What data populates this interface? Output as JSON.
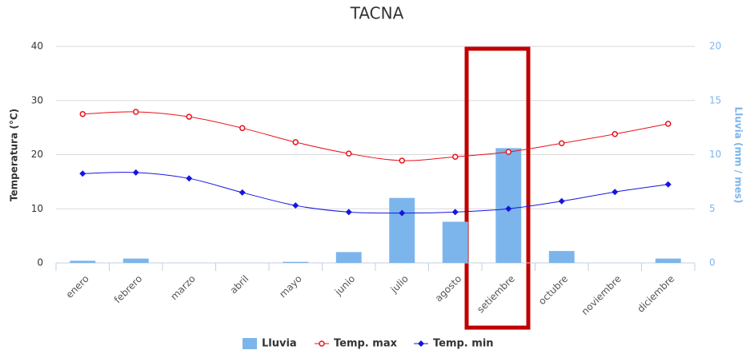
{
  "chart_data": {
    "type": "combo",
    "title": "TACNA",
    "categories": [
      "enero",
      "febrero",
      "marzo",
      "abril",
      "mayo",
      "junio",
      "julio",
      "agosto",
      "setiembre",
      "octubre",
      "noviembre",
      "diciembre"
    ],
    "ylabel": "Temperatura (°C)",
    "y2label": "Lluvia (mm / mes)",
    "ylim": [
      0,
      40
    ],
    "yticks": [
      0,
      10,
      20,
      30,
      40
    ],
    "y2lim": [
      0,
      20
    ],
    "y2ticks": [
      0,
      5,
      10,
      15,
      20
    ],
    "grid": true,
    "legend": "bottom",
    "series": [
      {
        "name": "Lluvia",
        "type": "bar",
        "axis": "y2",
        "color": "#7cb5ec",
        "values": [
          0.2,
          0.4,
          0,
          0,
          0.1,
          1.0,
          6.0,
          3.8,
          10.6,
          1.1,
          0,
          0.4
        ]
      },
      {
        "name": "Temp. max",
        "type": "line",
        "color": "#e8121b",
        "values": [
          27.5,
          27.9,
          27.0,
          24.9,
          22.3,
          20.2,
          18.9,
          19.6,
          20.5,
          22.1,
          23.8,
          25.7
        ]
      },
      {
        "name": "Temp. min",
        "type": "line",
        "color": "#1515e0",
        "values": [
          16.5,
          16.7,
          15.6,
          13.0,
          10.6,
          9.4,
          9.2,
          9.4,
          10.0,
          11.4,
          13.1,
          14.5
        ]
      }
    ]
  }
}
